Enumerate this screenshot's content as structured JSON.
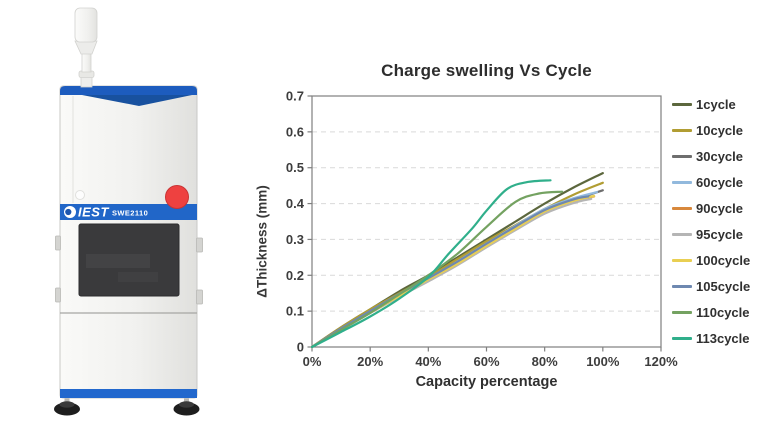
{
  "device": {
    "brand": "IEST",
    "model": "SWE2110",
    "colors": {
      "band_blue": "#1d5cbe",
      "band_blue_dark": "#18519f",
      "logo_band_blue": "#2166c8",
      "strip_blue": "#2268cd",
      "accent_red": "#ee4140",
      "window_dark": "#3a3a3c"
    }
  },
  "chart_data": {
    "type": "line",
    "title": "Charge swelling Vs Cycle",
    "xlabel": "Capacity percentage",
    "ylabel": "ΔThickness (mm)",
    "xlim": [
      0,
      120
    ],
    "ylim": [
      0,
      0.7
    ],
    "x_ticks": [
      "0%",
      "20%",
      "40%",
      "60%",
      "80%",
      "100%",
      "120%"
    ],
    "x_tick_values": [
      0,
      20,
      40,
      60,
      80,
      100,
      120
    ],
    "y_ticks": [
      "0",
      "0.1",
      "0.2",
      "0.3",
      "0.4",
      "0.5",
      "0.6",
      "0.7"
    ],
    "y_tick_values": [
      0,
      0.1,
      0.2,
      0.3,
      0.4,
      0.5,
      0.6,
      0.7
    ],
    "grid": "horizontal-dashed",
    "legend_position": "right",
    "series": [
      {
        "name": "1cycle",
        "color": "#5c673d",
        "x": [
          0,
          10,
          20,
          30,
          40,
          50,
          60,
          70,
          80,
          90,
          100
        ],
        "y": [
          0,
          0.055,
          0.105,
          0.155,
          0.2,
          0.25,
          0.3,
          0.35,
          0.4,
          0.445,
          0.485
        ]
      },
      {
        "name": "10cycle",
        "color": "#b19d33",
        "x": [
          0,
          10,
          20,
          30,
          40,
          50,
          60,
          70,
          80,
          90,
          100
        ],
        "y": [
          0,
          0.055,
          0.105,
          0.15,
          0.195,
          0.245,
          0.295,
          0.34,
          0.385,
          0.425,
          0.458
        ]
      },
      {
        "name": "30cycle",
        "color": "#6e6e6e",
        "x": [
          0,
          10,
          20,
          30,
          40,
          50,
          60,
          70,
          80,
          90,
          100
        ],
        "y": [
          0,
          0.05,
          0.1,
          0.145,
          0.19,
          0.235,
          0.285,
          0.33,
          0.378,
          0.41,
          0.437
        ]
      },
      {
        "name": "60cycle",
        "color": "#92b9dd",
        "x": [
          0,
          10,
          20,
          30,
          40,
          50,
          60,
          70,
          80,
          90,
          98
        ],
        "y": [
          0,
          0.05,
          0.1,
          0.145,
          0.19,
          0.238,
          0.288,
          0.338,
          0.385,
          0.415,
          0.432
        ]
      },
      {
        "name": "90cycle",
        "color": "#d8883c",
        "x": [
          0,
          10,
          20,
          30,
          40,
          50,
          60,
          70,
          80,
          90,
          97
        ],
        "y": [
          0,
          0.05,
          0.095,
          0.14,
          0.185,
          0.232,
          0.282,
          0.33,
          0.38,
          0.408,
          0.42
        ]
      },
      {
        "name": "95cycle",
        "color": "#b5b5b5",
        "x": [
          0,
          10,
          20,
          30,
          40,
          50,
          60,
          70,
          80,
          90,
          96
        ],
        "y": [
          0,
          0.048,
          0.095,
          0.14,
          0.183,
          0.228,
          0.278,
          0.326,
          0.372,
          0.402,
          0.413
        ]
      },
      {
        "name": "100cycle",
        "color": "#e9cf52",
        "x": [
          0,
          10,
          20,
          30,
          40,
          50,
          60,
          70,
          80,
          90,
          97
        ],
        "y": [
          0,
          0.05,
          0.096,
          0.142,
          0.188,
          0.232,
          0.282,
          0.33,
          0.378,
          0.408,
          0.421
        ]
      },
      {
        "name": "105cycle",
        "color": "#6e88b0",
        "x": [
          0,
          10,
          20,
          30,
          40,
          50,
          60,
          70,
          80,
          90,
          95
        ],
        "y": [
          0,
          0.052,
          0.1,
          0.148,
          0.192,
          0.238,
          0.288,
          0.336,
          0.382,
          0.412,
          0.42
        ]
      },
      {
        "name": "110cycle",
        "color": "#74a261",
        "x": [
          0,
          10,
          20,
          30,
          40,
          50,
          60,
          70,
          78,
          86
        ],
        "y": [
          0,
          0.048,
          0.095,
          0.147,
          0.2,
          0.26,
          0.335,
          0.405,
          0.428,
          0.433
        ]
      },
      {
        "name": "113cycle",
        "color": "#30af8b",
        "x": [
          0,
          10,
          20,
          30,
          40,
          47,
          55,
          60,
          67,
          74,
          82
        ],
        "y": [
          0,
          0.042,
          0.085,
          0.135,
          0.195,
          0.26,
          0.33,
          0.38,
          0.44,
          0.46,
          0.465
        ]
      }
    ]
  }
}
